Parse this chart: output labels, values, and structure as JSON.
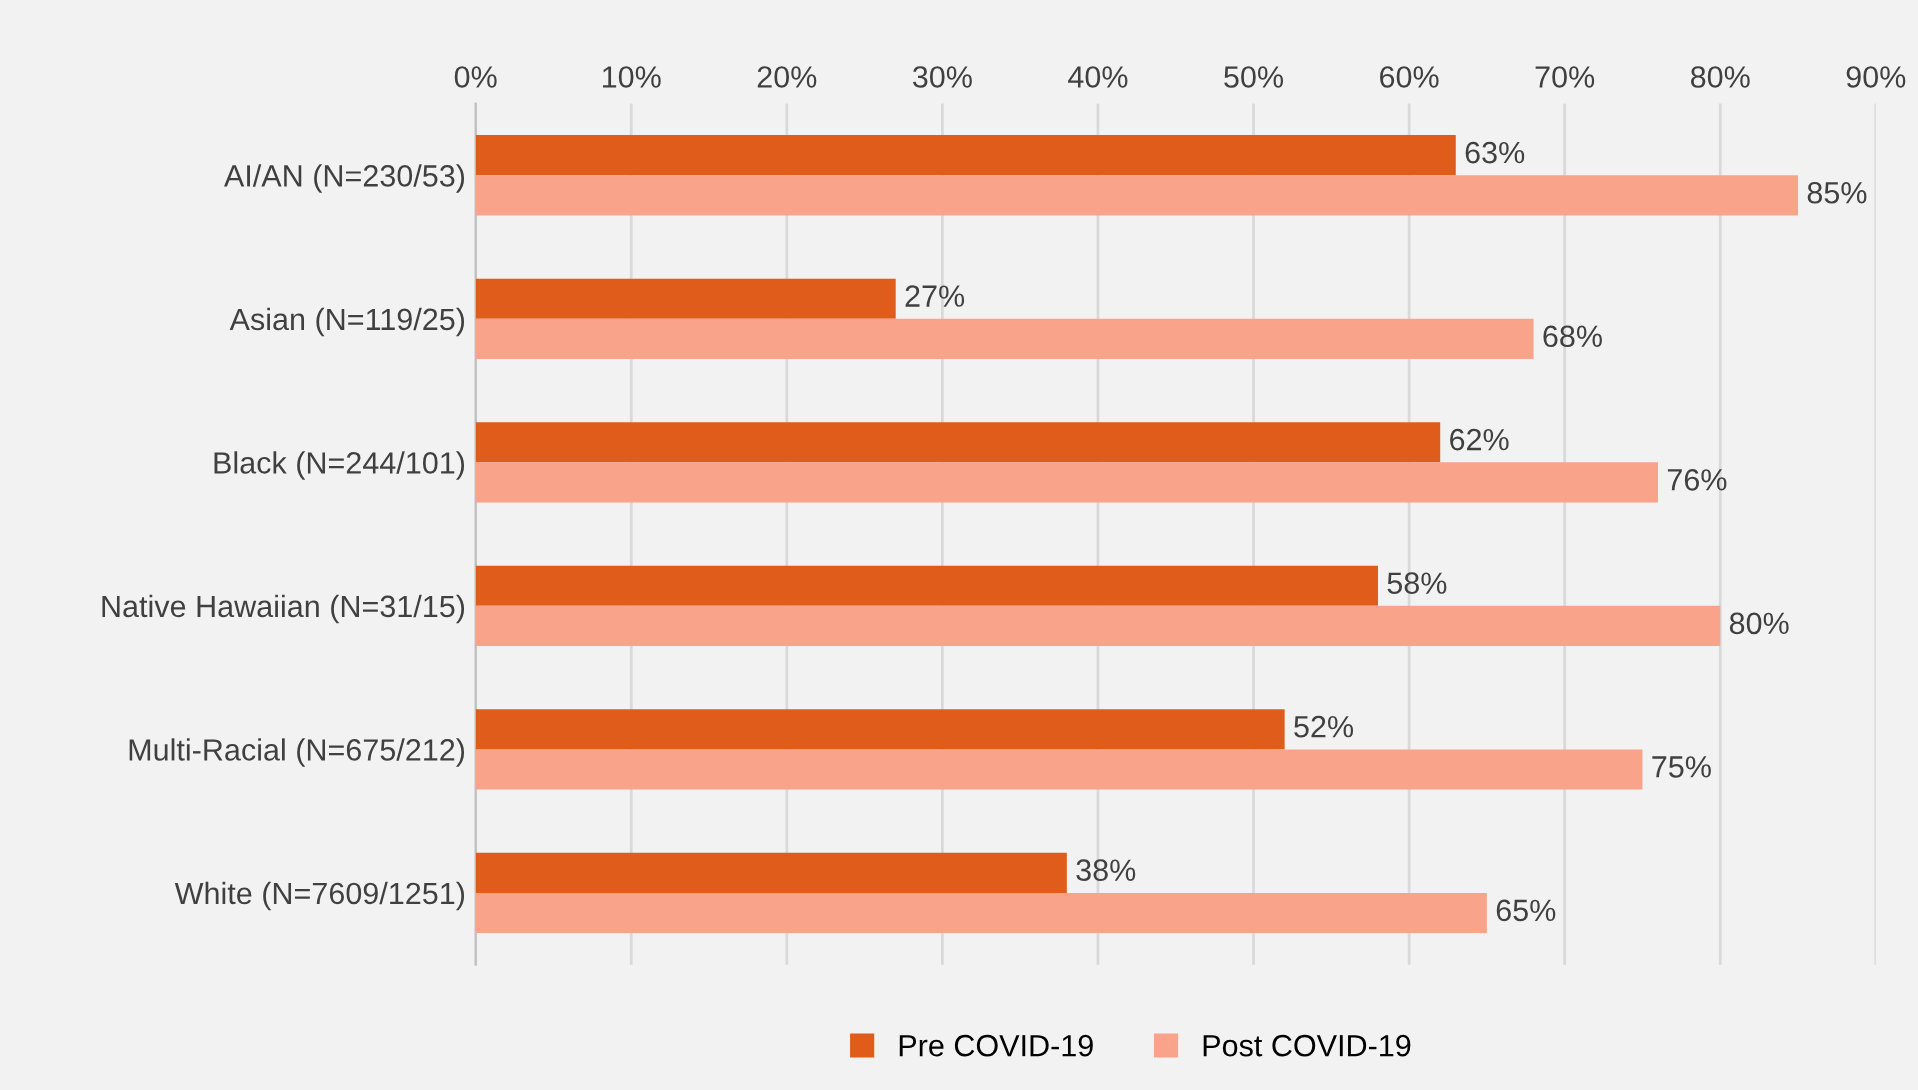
{
  "chart_data": {
    "type": "bar",
    "orientation": "horizontal",
    "categories": [
      "AI/AN (N=230/53)",
      "Asian (N=119/25)",
      "Black (N=244/101)",
      "Native Hawaiian (N=31/15)",
      "Multi-Racial (N=675/212)",
      "White (N=7609/1251)"
    ],
    "series": [
      {
        "name": "Pre COVID-19",
        "color": "#e05c1a",
        "values": [
          63,
          27,
          62,
          58,
          52,
          38
        ],
        "value_labels": [
          "63%",
          "27%",
          "62%",
          "58%",
          "52%",
          "38%"
        ]
      },
      {
        "name": "Post COVID-19",
        "color": "#f9a38a",
        "values": [
          85,
          68,
          76,
          80,
          75,
          65
        ],
        "value_labels": [
          "85%",
          "68%",
          "76%",
          "80%",
          "75%",
          "65%"
        ]
      }
    ],
    "xlim": [
      0,
      90
    ],
    "xticks": [
      {
        "value": 0,
        "label": "0%"
      },
      {
        "value": 10,
        "label": "10%"
      },
      {
        "value": 20,
        "label": "20%"
      },
      {
        "value": 30,
        "label": "30%"
      },
      {
        "value": 40,
        "label": "40%"
      },
      {
        "value": 50,
        "label": "50%"
      },
      {
        "value": 60,
        "label": "60%"
      },
      {
        "value": 70,
        "label": "70%"
      },
      {
        "value": 80,
        "label": "80%"
      },
      {
        "value": 90,
        "label": "90%"
      }
    ],
    "grid": "x",
    "legend": "bottom"
  }
}
